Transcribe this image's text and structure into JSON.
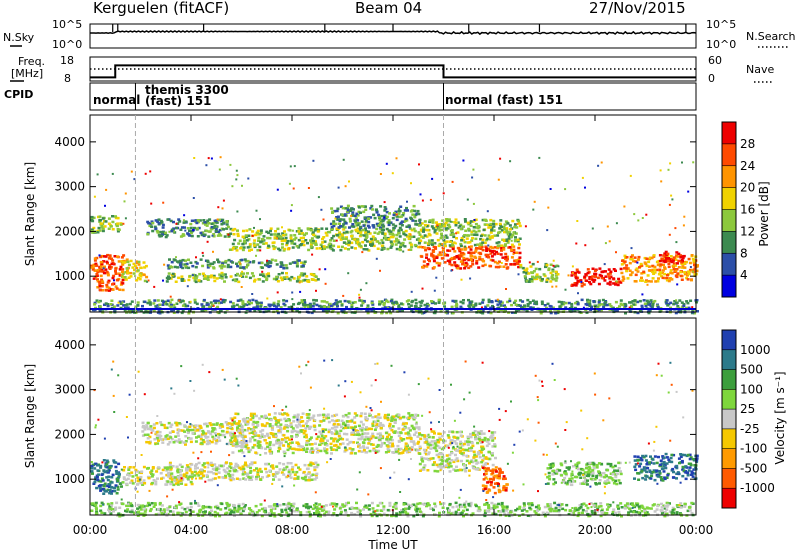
{
  "header": {
    "station": "Kerguelen (fitACF)",
    "beam": "Beam 04",
    "date": "27/Nov/2015"
  },
  "noise_panel": {
    "left_label": "N.Sky",
    "right_label": "N.Search",
    "left_ticks": [
      "10^5",
      "10^0"
    ],
    "right_ticks": [
      "10^5",
      "10^0"
    ]
  },
  "freq_panel": {
    "left_label_line1": "Freq.",
    "left_label_line2": "[MHz]",
    "right_label": "Nave",
    "left_ticks": [
      "18",
      "8"
    ],
    "right_ticks": [
      "60",
      "0"
    ],
    "freq_steps": [
      {
        "t": 0,
        "f": 9.5
      },
      {
        "t": 1.0,
        "f": 14.5
      },
      {
        "t": 14.0,
        "f": 9.5
      },
      {
        "t": 24.0,
        "f": 9.5
      }
    ],
    "nave_level": 30
  },
  "cpid": {
    "label": "CPID",
    "segments": [
      {
        "text": "normal",
        "line2": ""
      },
      {
        "text": "themis 3300",
        "line2": "(fast) 151"
      },
      {
        "text": "normal (fast) 151",
        "line2": ""
      }
    ],
    "boundaries": [
      1.8,
      14.0
    ]
  },
  "x_axis": {
    "label": "Time UT",
    "ticks": [
      "00:00",
      "04:00",
      "08:00",
      "12:00",
      "16:00",
      "20:00",
      "00:00"
    ],
    "range": [
      0,
      24
    ]
  },
  "chart_data": [
    {
      "type": "heatmap",
      "title": "Power",
      "ylabel": "Slant Range [km]",
      "yticks": [
        "1000",
        "2000",
        "3000",
        "4000"
      ],
      "ylim": [
        200,
        4600
      ],
      "colorbar_label": "Power [dB]",
      "colorbar_ticks": [
        "28",
        "24",
        "20",
        "16",
        "12",
        "8",
        "4"
      ],
      "colors": [
        "#0000e0",
        "#2c4fa8",
        "#3c8a50",
        "#8cc83c",
        "#f0d200",
        "#ff9400",
        "#ff4a00",
        "#ee0000"
      ],
      "regions": [
        {
          "t0": 0.0,
          "t1": 1.2,
          "r0": 2000,
          "r1": 2400,
          "level": 3
        },
        {
          "t0": 0.0,
          "t1": 1.3,
          "r0": 700,
          "r1": 1500,
          "level": 6
        },
        {
          "t0": 1.2,
          "t1": 2.2,
          "r0": 900,
          "r1": 1400,
          "level": 4
        },
        {
          "t0": 2.2,
          "t1": 5.5,
          "r0": 1900,
          "r1": 2300,
          "level": 2
        },
        {
          "t0": 3.0,
          "t1": 8.5,
          "r0": 1200,
          "r1": 1400,
          "level": 2
        },
        {
          "t0": 3.0,
          "t1": 9.0,
          "r0": 900,
          "r1": 1100,
          "level": 3
        },
        {
          "t0": 5.5,
          "t1": 13.0,
          "r0": 1600,
          "r1": 2100,
          "level": 3
        },
        {
          "t0": 9.5,
          "t1": 13.0,
          "r0": 2100,
          "r1": 2600,
          "level": 2
        },
        {
          "t0": 13.0,
          "t1": 17.0,
          "r0": 1200,
          "r1": 1700,
          "level": 6
        },
        {
          "t0": 13.0,
          "t1": 17.0,
          "r0": 1700,
          "r1": 2300,
          "level": 3
        },
        {
          "t0": 17.0,
          "t1": 18.5,
          "r0": 900,
          "r1": 1300,
          "level": 3
        },
        {
          "t0": 19.0,
          "t1": 21.0,
          "r0": 800,
          "r1": 1200,
          "level": 7
        },
        {
          "t0": 21.0,
          "t1": 24.0,
          "r0": 900,
          "r1": 1500,
          "level": 5
        },
        {
          "t0": 22.5,
          "t1": 23.5,
          "r0": 1300,
          "r1": 1600,
          "level": 7
        },
        {
          "t0": 0.0,
          "t1": 24.0,
          "r0": 200,
          "r1": 500,
          "level": 2
        }
      ]
    },
    {
      "type": "heatmap",
      "title": "Velocity",
      "ylabel": "Slant Range [km]",
      "yticks": [
        "1000",
        "2000",
        "3000",
        "4000"
      ],
      "ylim": [
        200,
        4600
      ],
      "colorbar_label": "Velocity [m s⁻¹]",
      "colorbar_ticks": [
        "1000",
        "500",
        "100",
        "25",
        "-25",
        "-100",
        "-500",
        "-1000"
      ],
      "colors": [
        "#ee0000",
        "#ff5a00",
        "#ff9a00",
        "#f5c800",
        "#c8c8c8",
        "#7ed63c",
        "#3c9e3c",
        "#2c7a8a",
        "#2040b0"
      ],
      "regions": [
        {
          "t0": 0.0,
          "t1": 1.2,
          "r0": 700,
          "r1": 1500,
          "level": 7
        },
        {
          "t0": 1.2,
          "t1": 4.0,
          "r0": 900,
          "r1": 1300,
          "level": 4
        },
        {
          "t0": 2.0,
          "t1": 6.0,
          "r0": 1800,
          "r1": 2300,
          "level": 4
        },
        {
          "t0": 3.0,
          "t1": 9.0,
          "r0": 1000,
          "r1": 1400,
          "level": 4
        },
        {
          "t0": 5.5,
          "t1": 13.0,
          "r0": 1600,
          "r1": 2500,
          "level": 4
        },
        {
          "t0": 13.0,
          "t1": 16.0,
          "r0": 1200,
          "r1": 2100,
          "level": 4
        },
        {
          "t0": 15.5,
          "t1": 16.5,
          "r0": 700,
          "r1": 1300,
          "level": 1
        },
        {
          "t0": 18.0,
          "t1": 21.0,
          "r0": 900,
          "r1": 1400,
          "level": 5
        },
        {
          "t0": 21.5,
          "t1": 24.0,
          "r0": 1000,
          "r1": 1600,
          "level": 7
        },
        {
          "t0": 0.0,
          "t1": 24.0,
          "r0": 200,
          "r1": 500,
          "level": 5
        }
      ]
    }
  ]
}
